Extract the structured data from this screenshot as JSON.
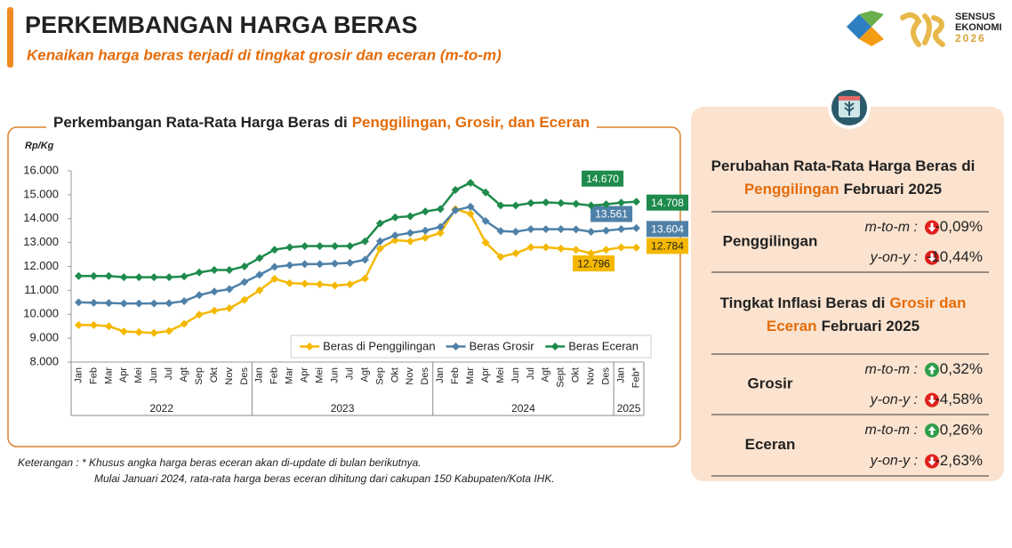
{
  "header": {
    "title": "PERKEMBANGAN HARGA BERAS",
    "subtitle": "Kenaikan harga beras terjadi di tingkat grosir dan eceran (m-to-m)"
  },
  "logo": {
    "lines": [
      "SENSUS",
      "EKONOMI",
      "2026"
    ]
  },
  "chart_data": {
    "type": "line",
    "title": [
      "Perkembangan Rata-Rata Harga Beras di",
      "Penggilingan, Grosir, dan Eceran"
    ],
    "y_label": "Rp/Kg",
    "categories": [
      "Jan",
      "Feb",
      "Mar",
      "Apr",
      "Mei",
      "Jun",
      "Jul",
      "Agt",
      "Sep",
      "Okt",
      "Nov",
      "Des",
      "Jan",
      "Feb",
      "Mar",
      "Apr",
      "Mei",
      "Jun",
      "Jul",
      "Agt",
      "Sep",
      "Okt",
      "Nov",
      "Des",
      "Jan",
      "Feb",
      "Mar",
      "Apr",
      "Mei",
      "Jun",
      "Jul",
      "Agt",
      "Sept",
      "Okt",
      "Nov",
      "Des",
      "Jan",
      "Feb*"
    ],
    "year_labels": [
      "2022",
      "2023",
      "2024",
      "2025"
    ],
    "series": [
      {
        "name": "Beras di Penggilingan",
        "color": "#f5b800",
        "label_text_color": "#222",
        "values": [
          9550,
          9550,
          9500,
          9280,
          9250,
          9220,
          9300,
          9600,
          9980,
          10150,
          10250,
          10600,
          11000,
          11480,
          11300,
          11280,
          11250,
          11200,
          11250,
          11500,
          12750,
          13100,
          13050,
          13200,
          13400,
          14400,
          14200,
          13000,
          12400,
          12550,
          12800,
          12800,
          12750,
          12700,
          12550,
          12700,
          12796,
          12784
        ],
        "value_labels": [
          null,
          null,
          null,
          null,
          null,
          null,
          null,
          null,
          null,
          null,
          null,
          null,
          null,
          null,
          null,
          null,
          null,
          null,
          null,
          null,
          null,
          null,
          null,
          null,
          null,
          null,
          null,
          null,
          null,
          null,
          null,
          null,
          null,
          null,
          null,
          null,
          "12.796",
          "12.784"
        ]
      },
      {
        "name": "Beras Grosir",
        "color": "#4f81a8",
        "label_text_color": "#fff",
        "values": [
          10500,
          10480,
          10470,
          10450,
          10450,
          10450,
          10460,
          10550,
          10800,
          10950,
          11050,
          11350,
          11650,
          11980,
          12050,
          12100,
          12100,
          12120,
          12150,
          12280,
          13050,
          13300,
          13400,
          13500,
          13650,
          14350,
          14500,
          13900,
          13480,
          13450,
          13560,
          13560,
          13560,
          13550,
          13450,
          13500,
          13561,
          13604
        ],
        "value_labels": [
          null,
          null,
          null,
          null,
          null,
          null,
          null,
          null,
          null,
          null,
          null,
          null,
          null,
          null,
          null,
          null,
          null,
          null,
          null,
          null,
          null,
          null,
          null,
          null,
          null,
          null,
          null,
          null,
          null,
          null,
          null,
          null,
          null,
          null,
          null,
          null,
          "13.561",
          "13.604"
        ]
      },
      {
        "name": "Beras Eceran",
        "color": "#1e8b4c",
        "label_text_color": "#fff",
        "values": [
          11600,
          11600,
          11600,
          11550,
          11550,
          11550,
          11550,
          11580,
          11750,
          11850,
          11850,
          12000,
          12350,
          12700,
          12800,
          12850,
          12850,
          12850,
          12850,
          13050,
          13800,
          14050,
          14100,
          14300,
          14400,
          15200,
          15500,
          15100,
          14550,
          14550,
          14650,
          14680,
          14650,
          14620,
          14550,
          14600,
          14670,
          14708
        ],
        "value_labels": [
          null,
          null,
          null,
          null,
          null,
          null,
          null,
          null,
          null,
          null,
          null,
          null,
          null,
          null,
          null,
          null,
          null,
          null,
          null,
          null,
          null,
          null,
          null,
          null,
          null,
          null,
          null,
          null,
          null,
          null,
          null,
          null,
          null,
          null,
          null,
          null,
          "14.670",
          "14.708"
        ]
      }
    ],
    "ylim": [
      8000,
      16000
    ],
    "yticks": [
      {
        "value": 8000,
        "label": "8.000"
      },
      {
        "value": 9000,
        "label": "9.000"
      },
      {
        "value": 10000,
        "label": "10.000"
      },
      {
        "value": 11000,
        "label": "11.000"
      },
      {
        "value": 12000,
        "label": "12.000"
      },
      {
        "value": 13000,
        "label": "13.000"
      },
      {
        "value": 14000,
        "label": "14.000"
      },
      {
        "value": 15000,
        "label": "15.000"
      },
      {
        "value": 16000,
        "label": "16.000"
      }
    ],
    "grid": false,
    "legend": "bottom-right"
  },
  "panel": {
    "sections": [
      {
        "title": [
          [
            {
              "text": "Perubahan Rata-Rata Harga Beras di"
            }
          ],
          [
            {
              "text": "Penggilingan",
              "highlight": true
            },
            {
              "text": "Februari 2025"
            }
          ]
        ],
        "groups": [
          {
            "label": "Penggilingan",
            "measures": [
              {
                "name": "m-to-m :",
                "value": "-0,09%",
                "direction": "down"
              },
              {
                "name": "y-on-y :",
                "value": "-10,44%",
                "direction": "down"
              }
            ]
          }
        ]
      },
      {
        "title": [
          [
            {
              "text": "Tingkat Inflasi Beras di"
            },
            {
              "text": "Grosir dan",
              "highlight": true
            }
          ],
          [
            {
              "text": "Eceran",
              "highlight": true
            },
            {
              "text": "Februari 2025"
            }
          ]
        ],
        "groups": [
          {
            "label": "Grosir",
            "measures": [
              {
                "name": "m-to-m :",
                "value": "0,32%",
                "direction": "up"
              },
              {
                "name": "y-on-y :",
                "value": "-4,58%",
                "direction": "down"
              }
            ]
          },
          {
            "label": "Eceran",
            "measures": [
              {
                "name": "m-to-m :",
                "value": "0,26%",
                "direction": "up"
              },
              {
                "name": "y-on-y :",
                "value": "-2,63%",
                "direction": "down"
              }
            ]
          }
        ]
      }
    ]
  },
  "footnote": [
    "Keterangan : * Khusus angka harga beras eceran akan di-update di bulan berikutnya.",
    "Mulai Januari 2024, rata-rata harga beras eceran dihitung dari cakupan 150 Kabupaten/Kota IHK."
  ]
}
